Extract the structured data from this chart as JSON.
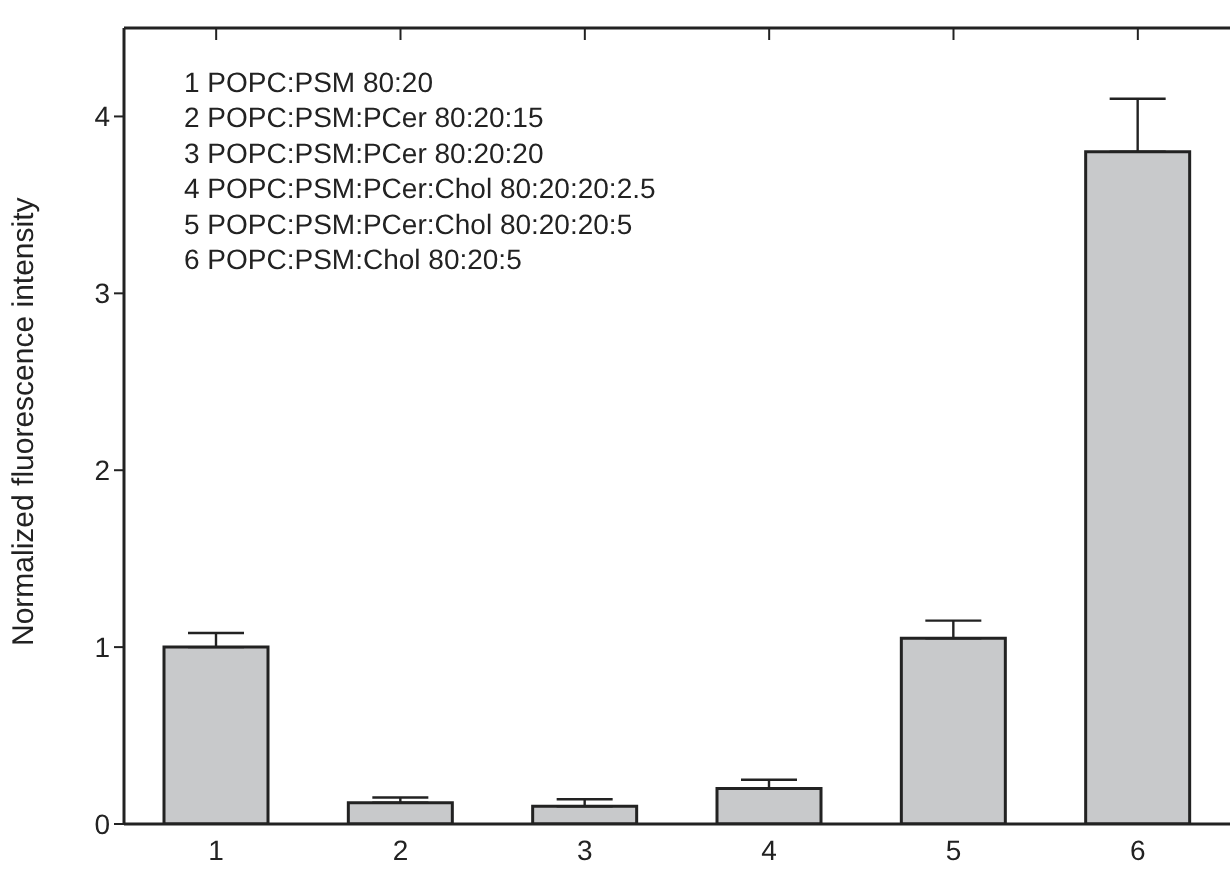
{
  "chart_data": {
    "type": "bar",
    "ylabel": "Normalized fluorescence intensity",
    "categories": [
      "1",
      "2",
      "3",
      "4",
      "5",
      "6"
    ],
    "values": [
      1.0,
      0.12,
      0.1,
      0.2,
      1.05,
      3.8
    ],
    "errors": [
      [
        1.0,
        1.08
      ],
      [
        0.12,
        0.15
      ],
      [
        0.1,
        0.14
      ],
      [
        0.2,
        0.25
      ],
      [
        1.05,
        1.15
      ],
      [
        3.8,
        4.1
      ]
    ],
    "color": "#c8c9cb",
    "ylim": [
      0,
      4.5
    ],
    "yticks": [
      0,
      1,
      2,
      3,
      4
    ],
    "grid": false,
    "legend": false,
    "annotations": [
      "1 POPC:PSM 80:20",
      "2 POPC:PSM:PCer 80:20:15",
      "3 POPC:PSM:PCer 80:20:20",
      "4 POPC:PSM:PCer:Chol 80:20:20:2.5",
      "5 POPC:PSM:PCer:Chol 80:20:20:5",
      "6 POPC:PSM:Chol 80:20:5"
    ]
  }
}
